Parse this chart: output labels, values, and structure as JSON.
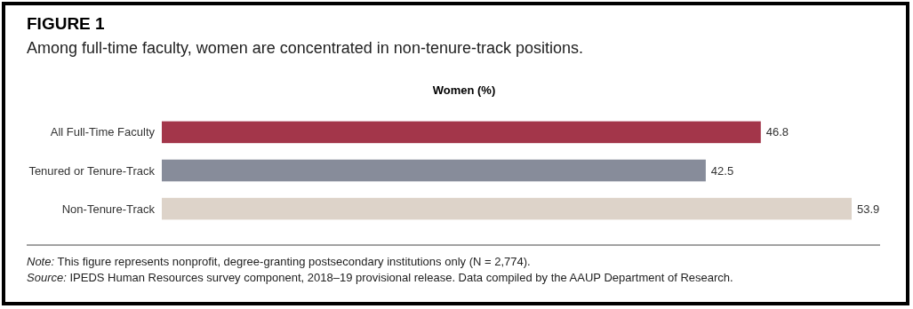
{
  "chart_data": {
    "type": "bar",
    "orientation": "horizontal",
    "title": "FIGURE 1",
    "subtitle": "Among full-time faculty, women are concentrated in non-tenure-track positions.",
    "xlabel": "Women (%)",
    "categories": [
      "All Full-Time Faculty",
      "Tenured or Tenure-Track",
      "Non-Tenure-Track"
    ],
    "values": [
      46.8,
      42.5,
      53.9
    ],
    "colors": [
      "#a3364a",
      "#878c9a",
      "#ddd3c9"
    ],
    "data_labels": true,
    "annotations": [
      "Note: This figure represents nonprofit, degree-granting postsecondary institutions only (N = 2,774).",
      "Source: IPEDS Human Resources survey component, 2018–19 provisional release. Data compiled by the AAUP Department of Research."
    ]
  }
}
